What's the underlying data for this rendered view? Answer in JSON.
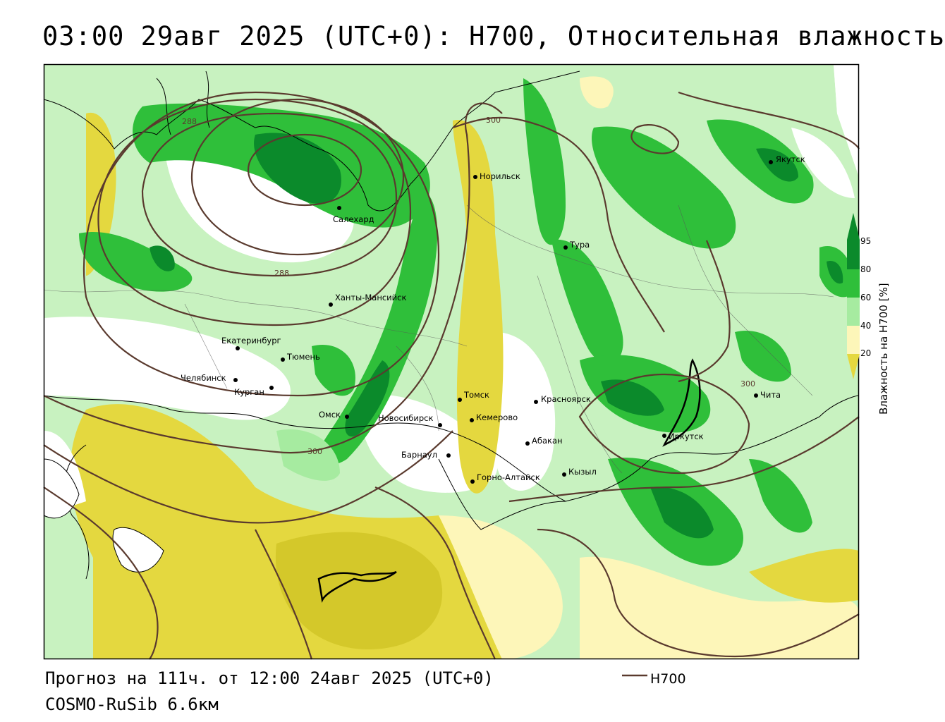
{
  "header": {
    "title": "03:00 29авг 2025 (UTC+0): H700, Относительная влажность"
  },
  "footer": {
    "forecast": "Прогноз на 111ч. от 12:00 24авг 2025 (UTC+0)",
    "model": "COSMO-RuSib 6.6км",
    "legend_label": "H700"
  },
  "colorbar": {
    "title": "Влажность на H700 [%]",
    "ticks": [
      "95",
      "80",
      "60",
      "40",
      "20"
    ],
    "colors": [
      "#0b8a2b",
      "#2fbf3a",
      "#a6eba0",
      "#fdf6b9",
      "#e4d83f"
    ]
  },
  "isolines": {
    "labels": [
      "288",
      "288",
      "300",
      "300",
      "300"
    ],
    "color": "#5a3a2e"
  },
  "cities": [
    {
      "name": "Норильск"
    },
    {
      "name": "Салехард"
    },
    {
      "name": "Тура"
    },
    {
      "name": "Якутск"
    },
    {
      "name": "Ханты-Мансийск"
    },
    {
      "name": "Екатеринбург"
    },
    {
      "name": "Тюмень"
    },
    {
      "name": "Челябинск"
    },
    {
      "name": "Курган"
    },
    {
      "name": "Омск"
    },
    {
      "name": "Томск"
    },
    {
      "name": "Красноярск"
    },
    {
      "name": "Новосибирск"
    },
    {
      "name": "Кемерово"
    },
    {
      "name": "Абакан"
    },
    {
      "name": "Барнаул"
    },
    {
      "name": "Кызыл"
    },
    {
      "name": "Горно-Алтайск"
    },
    {
      "name": "Иркутск"
    },
    {
      "name": "Чита"
    }
  ]
}
